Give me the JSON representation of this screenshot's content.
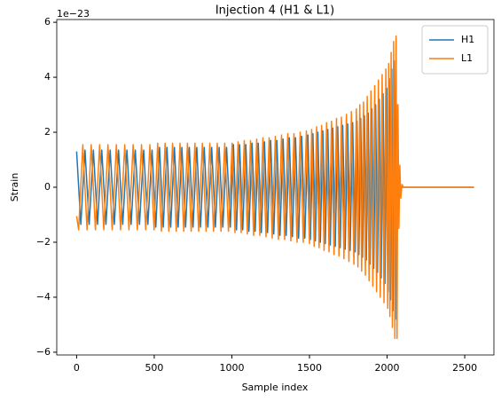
{
  "chart_data": {
    "type": "line",
    "title": "Injection 4 (H1 & L1)",
    "x_label": "Sample index",
    "y_label": "Strain",
    "y_offset_label": "1e−23",
    "xlim": [
      -128,
      2688
    ],
    "xticks": [
      0,
      500,
      1000,
      1500,
      2000,
      2500
    ],
    "ylim": [
      -6.1,
      6.1
    ],
    "yticks": [
      {
        "value": -6,
        "label": "−6"
      },
      {
        "value": -4,
        "label": "−4"
      },
      {
        "value": -2,
        "label": "−2"
      },
      0,
      2,
      4,
      6
    ],
    "legend": "upper right",
    "series": [
      {
        "name": "H1",
        "color": "#1f77b4",
        "x": [
          0,
          27,
          54,
          81,
          108,
          135,
          162,
          189,
          216,
          243,
          270,
          297,
          324,
          351,
          378,
          405,
          432,
          459,
          486,
          510,
          534,
          558,
          582,
          606,
          630,
          654,
          678,
          702,
          726,
          750,
          774,
          798,
          822,
          846,
          870,
          894,
          918,
          942,
          966,
          990,
          1010,
          1030,
          1050,
          1070,
          1090,
          1110,
          1130,
          1150,
          1170,
          1190,
          1210,
          1230,
          1250,
          1270,
          1290,
          1310,
          1330,
          1350,
          1370,
          1390,
          1410,
          1430,
          1450,
          1470,
          1490,
          1506,
          1522,
          1538,
          1554,
          1570,
          1586,
          1602,
          1618,
          1634,
          1650,
          1666,
          1682,
          1698,
          1714,
          1730,
          1746,
          1762,
          1778,
          1794,
          1806,
          1818,
          1830,
          1842,
          1854,
          1866,
          1878,
          1890,
          1902,
          1914,
          1926,
          1938,
          1950,
          1962,
          1974,
          1986,
          1998,
          2006,
          2014,
          2022,
          2030,
          2038,
          2046,
          2054,
          2060,
          2066,
          2072,
          2080,
          2090,
          2560
        ],
        "values": [
          1.3,
          -1.35,
          1.35,
          -1.35,
          1.35,
          -1.35,
          1.35,
          -1.35,
          1.35,
          -1.35,
          1.35,
          -1.35,
          1.35,
          -1.35,
          1.35,
          -1.35,
          1.35,
          -1.35,
          1.35,
          -1.45,
          1.45,
          -1.45,
          1.45,
          -1.45,
          1.45,
          -1.45,
          1.45,
          -1.45,
          1.45,
          -1.45,
          1.45,
          -1.45,
          1.45,
          -1.45,
          1.45,
          -1.45,
          1.45,
          -1.45,
          1.45,
          -1.45,
          1.55,
          -1.55,
          1.55,
          -1.55,
          1.55,
          -1.6,
          1.6,
          -1.6,
          1.6,
          -1.65,
          1.65,
          -1.65,
          1.7,
          -1.7,
          1.7,
          -1.75,
          1.75,
          -1.75,
          1.8,
          -1.8,
          1.8,
          -1.85,
          1.85,
          -1.85,
          1.9,
          -1.9,
          1.95,
          -1.95,
          2.0,
          -2.0,
          2.05,
          -2.05,
          2.1,
          -2.1,
          2.15,
          -2.15,
          2.2,
          -2.2,
          2.25,
          -2.25,
          2.3,
          -2.3,
          2.35,
          -2.35,
          2.4,
          -2.45,
          2.5,
          -2.55,
          2.6,
          -2.65,
          2.7,
          -2.8,
          2.85,
          -2.95,
          3.0,
          -3.1,
          3.2,
          -3.3,
          3.4,
          -3.5,
          3.6,
          -3.8,
          3.95,
          -4.1,
          4.3,
          -4.5,
          4.6,
          -4.8,
          3.0,
          -1.5,
          0.6,
          -0.1,
          0,
          0
        ]
      },
      {
        "name": "L1",
        "color": "#ff7f0e",
        "x": [
          0,
          13,
          40,
          67,
          94,
          121,
          148,
          175,
          202,
          229,
          256,
          283,
          310,
          337,
          364,
          391,
          418,
          445,
          472,
          499,
          522,
          546,
          570,
          594,
          618,
          642,
          666,
          690,
          714,
          738,
          762,
          786,
          810,
          834,
          858,
          882,
          906,
          930,
          954,
          978,
          1002,
          1020,
          1040,
          1060,
          1080,
          1100,
          1120,
          1140,
          1160,
          1180,
          1200,
          1220,
          1240,
          1260,
          1280,
          1300,
          1320,
          1340,
          1360,
          1380,
          1400,
          1420,
          1440,
          1460,
          1480,
          1500,
          1514,
          1530,
          1546,
          1562,
          1578,
          1594,
          1610,
          1626,
          1642,
          1658,
          1674,
          1690,
          1706,
          1722,
          1738,
          1754,
          1770,
          1786,
          1802,
          1812,
          1824,
          1836,
          1848,
          1860,
          1872,
          1884,
          1896,
          1908,
          1920,
          1932,
          1944,
          1956,
          1968,
          1980,
          1992,
          2004,
          2010,
          2018,
          2026,
          2034,
          2042,
          2050,
          2058,
          2064,
          2070,
          2076,
          2082,
          2088,
          2096,
          2105,
          2560
        ],
        "values": [
          -1.05,
          -1.55,
          1.55,
          -1.55,
          1.55,
          -1.55,
          1.55,
          -1.55,
          1.55,
          -1.55,
          1.55,
          -1.55,
          1.55,
          -1.55,
          1.55,
          -1.55,
          1.55,
          -1.55,
          1.55,
          -1.55,
          1.6,
          -1.6,
          1.6,
          -1.6,
          1.6,
          -1.6,
          1.6,
          -1.6,
          1.6,
          -1.6,
          1.6,
          -1.6,
          1.6,
          -1.6,
          1.6,
          -1.6,
          1.6,
          -1.6,
          1.6,
          -1.6,
          1.6,
          -1.65,
          1.65,
          -1.65,
          1.7,
          -1.7,
          1.7,
          -1.75,
          1.75,
          -1.75,
          1.8,
          -1.8,
          1.8,
          -1.85,
          1.85,
          -1.9,
          1.9,
          -1.9,
          1.95,
          -1.95,
          1.95,
          -2.0,
          2.0,
          -2.0,
          2.05,
          -2.05,
          2.1,
          -2.15,
          2.2,
          -2.2,
          2.25,
          -2.3,
          2.35,
          -2.35,
          2.4,
          -2.45,
          2.5,
          -2.5,
          2.55,
          -2.6,
          2.65,
          -2.7,
          2.75,
          -2.8,
          2.85,
          -2.9,
          3.0,
          -3.05,
          3.1,
          -3.2,
          3.3,
          -3.4,
          3.5,
          -3.6,
          3.7,
          -3.8,
          3.9,
          -4.0,
          4.1,
          -4.2,
          4.3,
          -4.4,
          4.5,
          -4.7,
          4.9,
          -5.1,
          5.3,
          -5.5,
          5.5,
          -5.5,
          3.0,
          -1.5,
          0.8,
          -0.4,
          0.1,
          0,
          0
        ]
      }
    ]
  }
}
